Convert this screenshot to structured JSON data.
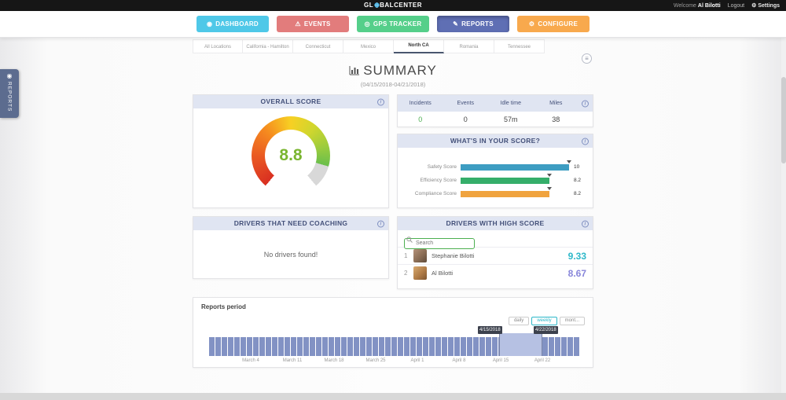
{
  "topbar": {
    "logo": {
      "part1": "GL",
      "part2": "BAL",
      "part3": "CENTER"
    },
    "welcome_label": "Welcome",
    "user_name": "Al Bilotti",
    "logout_label": "Logout",
    "settings_label": "Settings",
    "settings_gear_glyph": "⚙"
  },
  "nav": {
    "active": "REPORTS",
    "buttons": [
      {
        "label": "DASHBOARD",
        "icon": "dashboard-icon",
        "glyph": "◉",
        "color": "#4fc8e8"
      },
      {
        "label": "EVENTS",
        "icon": "warning-icon",
        "glyph": "⚠",
        "color": "#e27c7c"
      },
      {
        "label": "GPS TRACKER",
        "icon": "gps-pin-icon",
        "glyph": "◎",
        "color": "#55cf8a"
      },
      {
        "label": "REPORTS",
        "icon": "report-icon",
        "glyph": "✎",
        "color": "#5f6fb4"
      },
      {
        "label": "CONFIGURE",
        "icon": "configure-icon",
        "glyph": "⚙",
        "color": "#f8a94d"
      }
    ]
  },
  "location_tabs": {
    "active": "North CA",
    "tabs": [
      "All Locations",
      "California - Hamilton",
      "Connecticut",
      "Mexico",
      "North CA",
      "Romania",
      "Tennessee"
    ]
  },
  "side_tab": {
    "label": "REPORTS",
    "glyph": "◉"
  },
  "page": {
    "title": "SUMMARY",
    "date_range": "(04/15/2018-04/21/2018)",
    "panel_menu_glyph": "≡"
  },
  "overall_score": {
    "header": "OVERALL SCORE",
    "value": "8.8",
    "value_color": "#7ab530"
  },
  "stats": {
    "columns": [
      "Incidents",
      "Events",
      "Idle time",
      "Miles"
    ],
    "values": [
      "0",
      "0",
      "57m",
      "38"
    ],
    "value_colors": [
      "#4caf50",
      "#444444",
      "#444444",
      "#444444"
    ]
  },
  "score_breakdown": {
    "header": "WHAT'S IN YOUR SCORE?",
    "bars": [
      {
        "label": "Safety Score",
        "value": "10",
        "pct": 100,
        "color": "#3d9dc2"
      },
      {
        "label": "Efficiency Score",
        "value": "8.2",
        "pct": 82,
        "color": "#35ae6a"
      },
      {
        "label": "Compliance Score",
        "value": "8.2",
        "pct": 82,
        "color": "#f0a33e"
      }
    ]
  },
  "coaching": {
    "header": "DRIVERS THAT NEED COACHING",
    "empty_message": "No drivers found!"
  },
  "high_score": {
    "header": "DRIVERS WITH HIGH SCORE",
    "search_placeholder": "Search",
    "drivers": [
      {
        "rank": "1",
        "name": "Stephanie Bilotti",
        "score": "9.33",
        "score_color": "#2eb8c9"
      },
      {
        "rank": "2",
        "name": "Al Bilotti",
        "score": "8.67",
        "score_color": "#8886da"
      }
    ]
  },
  "reports_period": {
    "title": "Reports period",
    "range_buttons": [
      "daily",
      "weekly",
      "mont..."
    ],
    "active_range": "weekly",
    "tooltips": [
      "4/15/2018",
      "4/22/2018"
    ],
    "chart_data": {
      "type": "bar",
      "x_labels": [
        "March 4",
        "March 11",
        "March 18",
        "March 25",
        "April 1",
        "April 8",
        "April 15",
        "April 22"
      ],
      "bar_count": 59,
      "bar_color": "#8292c4",
      "selection": {
        "start": "4/15/2018",
        "end": "4/22/2018",
        "left_pct": 77.7,
        "width_pct": 11.6,
        "color": "#b6c1e3"
      }
    }
  }
}
